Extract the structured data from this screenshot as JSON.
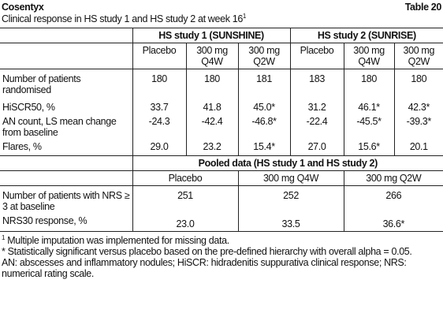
{
  "header": {
    "product": "Cosentyx",
    "table_number": "Table 20",
    "title": "Clinical response in HS study 1 and HS study 2 at week 16",
    "title_footnote": "1"
  },
  "table1": {
    "groups": [
      "HS study 1 (SUNSHINE)",
      "HS study 2 (SUNRISE)"
    ],
    "columns": [
      "Placebo",
      "300 mg Q4W",
      "300 mg Q2W",
      "Placebo",
      "300 mg Q4W",
      "300 mg Q2W"
    ],
    "rows": [
      {
        "label": "Number of patients randomised",
        "cells": [
          "180",
          "180",
          "181",
          "183",
          "180",
          "180"
        ]
      },
      {
        "label": "HiSCR50, %",
        "cells": [
          "33.7",
          "41.8",
          "45.0*",
          "31.2",
          "46.1*",
          "42.3*"
        ]
      },
      {
        "label": "AN count, LS mean change from baseline",
        "cells": [
          "-24.3",
          "-42.4",
          "-46.8*",
          "-22.4",
          "-45.5*",
          "-39.3*"
        ]
      },
      {
        "label": "Flares, %",
        "cells": [
          "29.0",
          "23.2",
          "15.4*",
          "27.0",
          "15.6*",
          "20.1"
        ]
      }
    ]
  },
  "table2": {
    "title": "Pooled data (HS study 1 and HS study 2)",
    "columns": [
      "Placebo",
      "300 mg Q4W",
      "300 mg Q2W"
    ],
    "rows": [
      {
        "label": "Number of patients with NRS ≥ 3 at baseline",
        "cells": [
          "251",
          "252",
          "266"
        ]
      },
      {
        "label": "NRS30 response, %",
        "cells": [
          "23.0",
          "33.5",
          "36.6*"
        ]
      }
    ]
  },
  "footnotes": [
    {
      "marker": "1",
      "text": " Multiple imputation was implemented for missing data."
    },
    {
      "text": "* Statistically significant versus placebo based on the pre-defined hierarchy with overall alpha = 0.05."
    },
    {
      "text": "AN: abscesses and inflammatory nodules; HiSCR: hidradenitis suppurativa clinical response; NRS: numerical rating scale."
    }
  ]
}
